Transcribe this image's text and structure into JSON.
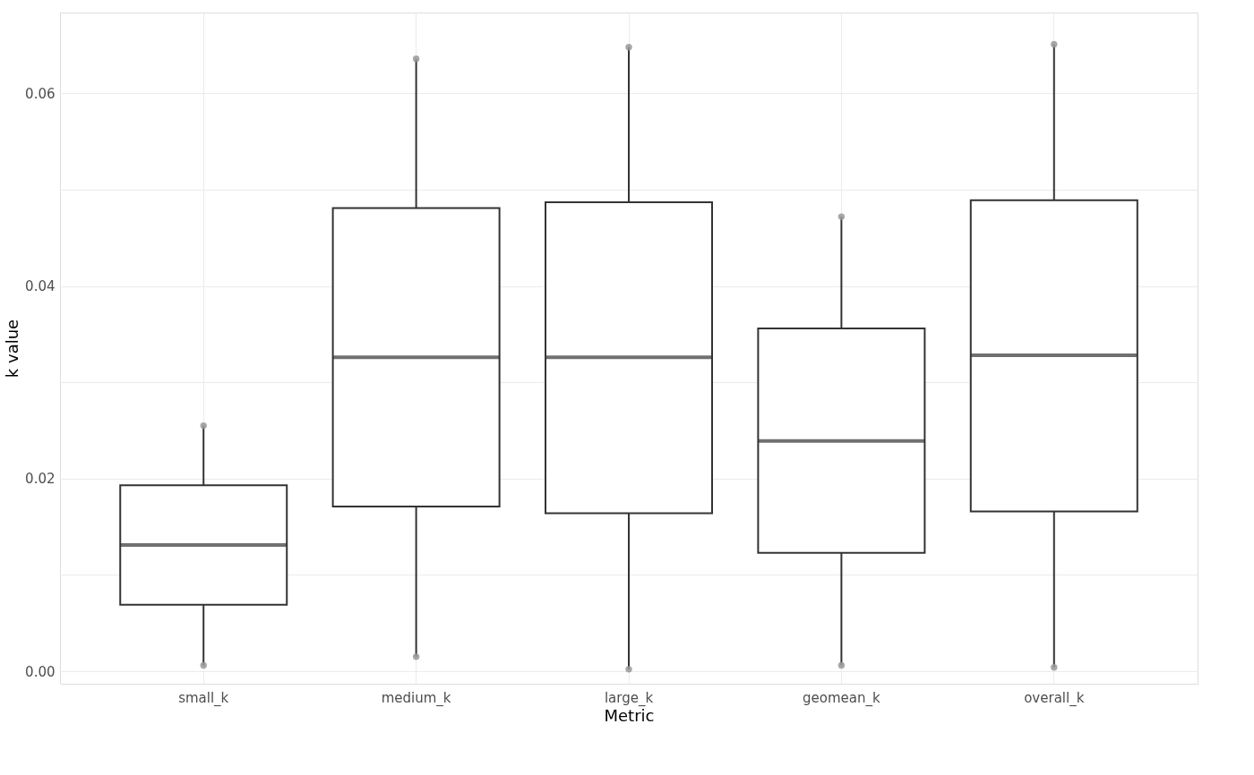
{
  "chart_data": {
    "type": "box",
    "xlabel": "Metric",
    "ylabel": "k value",
    "categories": [
      "small_k",
      "medium_k",
      "large_k",
      "geomean_k",
      "overall_k"
    ],
    "boxes": [
      {
        "low": 0.0006,
        "q1": 0.0069,
        "median": 0.0131,
        "q3": 0.0193,
        "high": 0.0255
      },
      {
        "low": 0.0015,
        "q1": 0.0171,
        "median": 0.0326,
        "q3": 0.0481,
        "high": 0.0636
      },
      {
        "low": 0.0002,
        "q1": 0.0164,
        "median": 0.0326,
        "q3": 0.0487,
        "high": 0.0648
      },
      {
        "low": 0.0006,
        "q1": 0.0123,
        "median": 0.0239,
        "q3": 0.0356,
        "high": 0.0472
      },
      {
        "low": 0.0004,
        "q1": 0.0166,
        "median": 0.0328,
        "q3": 0.0489,
        "high": 0.0651
      }
    ],
    "series": [
      {
        "type": "scatter",
        "color": "#999999",
        "x": [
          "small_k",
          "small_k",
          "medium_k",
          "medium_k",
          "large_k",
          "large_k",
          "geomean_k",
          "geomean_k",
          "overall_k",
          "overall_k"
        ],
        "values": [
          0.0006,
          0.0255,
          0.0015,
          0.0636,
          0.0002,
          0.0648,
          0.0006,
          0.0472,
          0.0004,
          0.0651
        ]
      }
    ],
    "ylim": [
      -0.0013,
      0.0684
    ],
    "yticks": [
      {
        "value": 0,
        "label": "0.00"
      },
      {
        "value": 0.01,
        "label": null
      },
      {
        "value": 0.02,
        "label": "0.02"
      },
      {
        "value": 0.03,
        "label": null
      },
      {
        "value": 0.04,
        "label": "0.04"
      },
      {
        "value": 0.05,
        "label": null
      },
      {
        "value": 0.06,
        "label": "0.06"
      }
    ],
    "grid": true
  }
}
